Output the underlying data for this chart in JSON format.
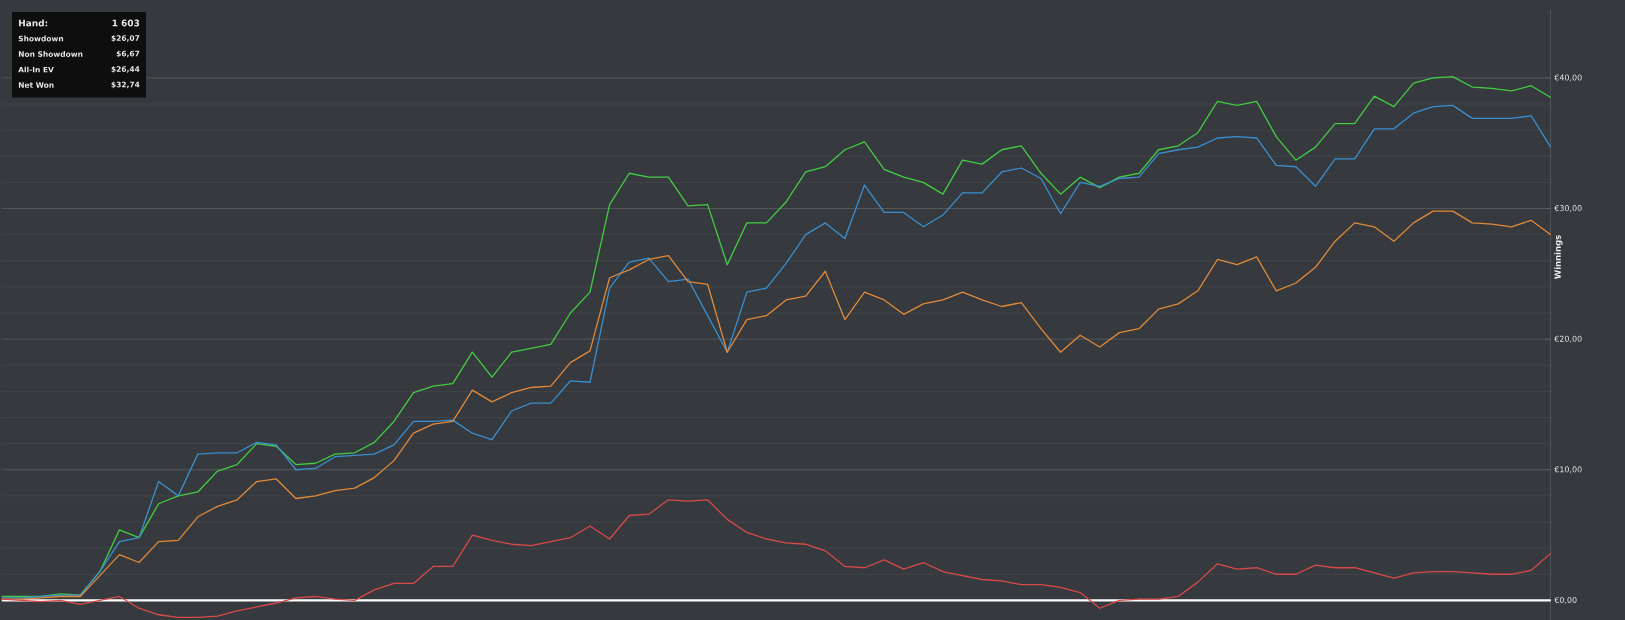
{
  "chart_data": {
    "type": "line",
    "ylabel": "Winnings",
    "categories": [
      null,
      null,
      null,
      null,
      null,
      null,
      null,
      null,
      null,
      null,
      null,
      null,
      null,
      null,
      null,
      null,
      null,
      null,
      null,
      null,
      null,
      null,
      null,
      null,
      null,
      null,
      null,
      null,
      null,
      null,
      null,
      null,
      null,
      null,
      null,
      null,
      null,
      null,
      null,
      null,
      null,
      null,
      null,
      null,
      null,
      null,
      null,
      null,
      null,
      null,
      null,
      null,
      null,
      null,
      null,
      null,
      null,
      null,
      null,
      null,
      null,
      null,
      null,
      null,
      null,
      null,
      null,
      null,
      null,
      null,
      null,
      null,
      null,
      null,
      null,
      null,
      null,
      null,
      null,
      null
    ],
    "ylim": [
      -1.5,
      45.2
    ],
    "yticks": [
      {
        "value": 0,
        "label": "€0,00"
      },
      {
        "value": 10,
        "label": "€10,00"
      },
      {
        "value": 20,
        "label": "€20,00"
      },
      {
        "value": 30,
        "label": "€30,00"
      },
      {
        "value": 40,
        "label": "€40,00"
      }
    ],
    "series": [
      {
        "color": "#44cc44",
        "values": [
          0.3,
          0.3,
          0.3,
          0.5,
          0.4,
          2.2,
          5.4,
          4.8,
          7.4,
          8.0,
          8.3,
          9.9,
          10.4,
          12.0,
          11.8,
          10.4,
          10.5,
          11.2,
          11.3,
          12.1,
          13.7,
          15.9,
          16.4,
          16.6,
          19.0,
          17.1,
          19.0,
          19.3,
          19.6,
          22.0,
          23.6,
          30.3,
          32.7,
          32.4,
          32.4,
          30.2,
          30.3,
          25.7,
          28.9,
          28.9,
          30.5,
          32.8,
          33.2,
          34.5,
          35.1,
          33.0,
          32.4,
          32.0,
          31.1,
          33.7,
          33.4,
          34.5,
          34.8,
          32.7,
          31.1,
          32.4,
          31.6,
          32.4,
          32.7,
          34.5,
          34.8,
          35.8,
          38.2,
          37.9,
          38.2,
          35.5,
          33.7,
          34.7,
          36.5,
          36.5,
          38.6,
          37.8,
          39.6,
          40.0,
          40.1,
          39.3,
          39.2,
          39.0,
          39.4,
          38.5
        ]
      },
      {
        "color": "#3a8fd0",
        "values": [
          0.2,
          0.2,
          0.3,
          0.4,
          0.4,
          2.2,
          4.5,
          4.8,
          9.1,
          8.0,
          11.2,
          11.3,
          11.3,
          12.1,
          11.9,
          10.0,
          10.1,
          11.0,
          11.1,
          11.2,
          11.9,
          13.7,
          13.7,
          13.8,
          12.8,
          12.3,
          14.5,
          15.1,
          15.1,
          16.8,
          16.7,
          23.9,
          25.9,
          26.2,
          24.4,
          24.6,
          21.8,
          19.0,
          23.6,
          23.9,
          25.8,
          28.0,
          28.9,
          27.7,
          31.8,
          29.7,
          29.7,
          28.6,
          29.5,
          31.2,
          31.2,
          32.8,
          33.1,
          32.3,
          29.6,
          32.0,
          31.7,
          32.3,
          32.4,
          34.2,
          34.5,
          34.7,
          35.4,
          35.5,
          35.4,
          33.3,
          33.2,
          31.7,
          33.8,
          33.8,
          36.1,
          36.1,
          37.3,
          37.8,
          37.9,
          36.9,
          36.9,
          36.9,
          37.1,
          34.7
        ]
      },
      {
        "color": "#e08a3a",
        "values": [
          0.1,
          0.1,
          0.2,
          0.3,
          0.3,
          1.9,
          3.5,
          2.9,
          4.5,
          4.6,
          6.4,
          7.2,
          7.7,
          9.1,
          9.3,
          7.8,
          8.0,
          8.4,
          8.6,
          9.4,
          10.7,
          12.8,
          13.5,
          13.7,
          16.1,
          15.2,
          15.9,
          16.3,
          16.4,
          18.2,
          19.1,
          24.7,
          25.3,
          26.1,
          26.4,
          24.4,
          24.2,
          19.0,
          21.5,
          21.8,
          23.0,
          23.3,
          25.2,
          21.5,
          23.6,
          23.0,
          21.9,
          22.7,
          23.0,
          23.6,
          23.0,
          22.5,
          22.8,
          20.8,
          19.0,
          20.3,
          19.4,
          20.5,
          20.8,
          22.3,
          22.7,
          23.7,
          26.1,
          25.7,
          26.3,
          23.7,
          24.3,
          25.5,
          27.5,
          28.9,
          28.6,
          27.5,
          28.9,
          29.8,
          29.8,
          28.9,
          28.8,
          28.6,
          29.1,
          28.0
        ]
      },
      {
        "color": "#d84a4a",
        "values": [
          0.1,
          0.0,
          -0.1,
          0.0,
          -0.3,
          0.0,
          0.3,
          -0.6,
          -1.1,
          -1.3,
          -1.3,
          -1.2,
          -0.8,
          -0.5,
          -0.2,
          0.2,
          0.3,
          0.1,
          0.0,
          0.8,
          1.3,
          1.3,
          2.6,
          2.6,
          5.0,
          4.6,
          4.3,
          4.2,
          4.5,
          4.8,
          5.7,
          4.7,
          6.5,
          6.6,
          7.7,
          7.6,
          7.7,
          6.2,
          5.2,
          4.7,
          4.4,
          4.3,
          3.8,
          2.6,
          2.5,
          3.1,
          2.4,
          2.9,
          2.2,
          1.9,
          1.6,
          1.5,
          1.2,
          1.2,
          1.0,
          0.6,
          -0.6,
          0.0,
          0.1,
          0.1,
          0.3,
          1.4,
          2.8,
          2.4,
          2.5,
          2.0,
          2.0,
          2.7,
          2.5,
          2.5,
          2.1,
          1.7,
          2.1,
          2.2,
          2.2,
          2.1,
          2.0,
          2.0,
          2.3,
          3.6
        ]
      }
    ],
    "ref_lines": [
      {
        "axis": "y",
        "value": 0,
        "color": "#ffffff"
      }
    ],
    "grid": true,
    "tick_labels": "y",
    "annotations": [
      "Hand:",
      "1 603",
      "Showdown",
      "$26,07",
      "Non Showdown",
      "$6,67",
      "All-In EV",
      "$26,44",
      "Net Won",
      "$32,74"
    ]
  }
}
